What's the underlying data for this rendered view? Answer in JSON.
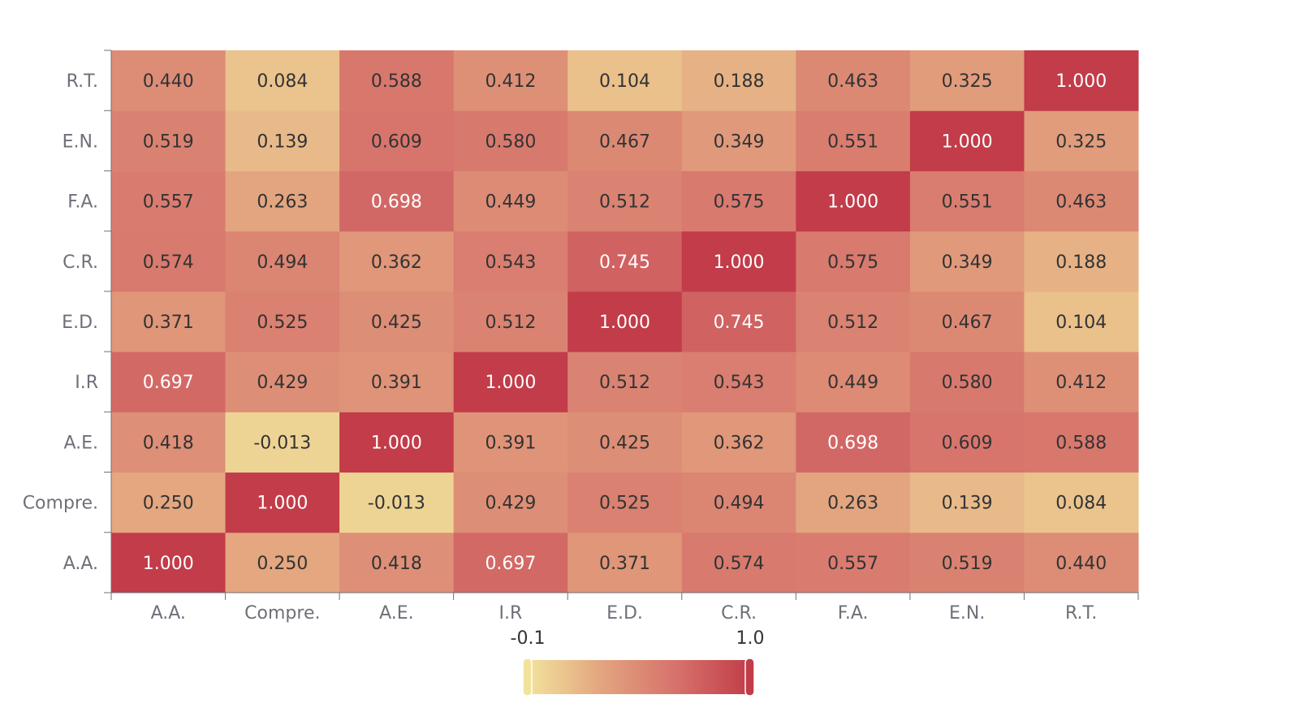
{
  "chart_data": {
    "type": "heatmap",
    "x_categories": [
      "A.A.",
      "Compre.",
      "A.E.",
      "I.R",
      "E.D.",
      "C.R.",
      "F.A.",
      "E.N.",
      "R.T."
    ],
    "y_categories": [
      "A.A.",
      "Compre.",
      "A.E.",
      "I.R",
      "E.D.",
      "C.R.",
      "F.A.",
      "E.N.",
      "R.T."
    ],
    "values": [
      [
        1.0,
        0.25,
        0.418,
        0.697,
        0.371,
        0.574,
        0.557,
        0.519,
        0.44
      ],
      [
        0.25,
        1.0,
        -0.013,
        0.429,
        0.525,
        0.494,
        0.263,
        0.139,
        0.084
      ],
      [
        0.418,
        -0.013,
        1.0,
        0.391,
        0.425,
        0.362,
        0.698,
        0.609,
        0.588
      ],
      [
        0.697,
        0.429,
        0.391,
        1.0,
        0.512,
        0.543,
        0.449,
        0.58,
        0.412
      ],
      [
        0.371,
        0.525,
        0.425,
        0.512,
        1.0,
        0.745,
        0.512,
        0.467,
        0.104
      ],
      [
        0.574,
        0.494,
        0.362,
        0.543,
        0.745,
        1.0,
        0.575,
        0.349,
        0.188
      ],
      [
        0.557,
        0.263,
        0.698,
        0.449,
        0.512,
        0.575,
        1.0,
        0.551,
        0.463
      ],
      [
        0.519,
        0.139,
        0.609,
        0.58,
        0.467,
        0.349,
        0.551,
        1.0,
        0.325
      ],
      [
        0.44,
        0.084,
        0.588,
        0.412,
        0.104,
        0.188,
        0.463,
        0.325,
        1.0
      ]
    ],
    "visual_map": {
      "min": -0.1,
      "max": 1.0,
      "min_label": "-0.1",
      "max_label": "1.0",
      "colors": [
        "#f2e39b",
        "#e3a47f",
        "#d6726b",
        "#c23c49"
      ]
    },
    "value_format_decimals": 3,
    "grid": false,
    "legend": "bottom-center"
  }
}
